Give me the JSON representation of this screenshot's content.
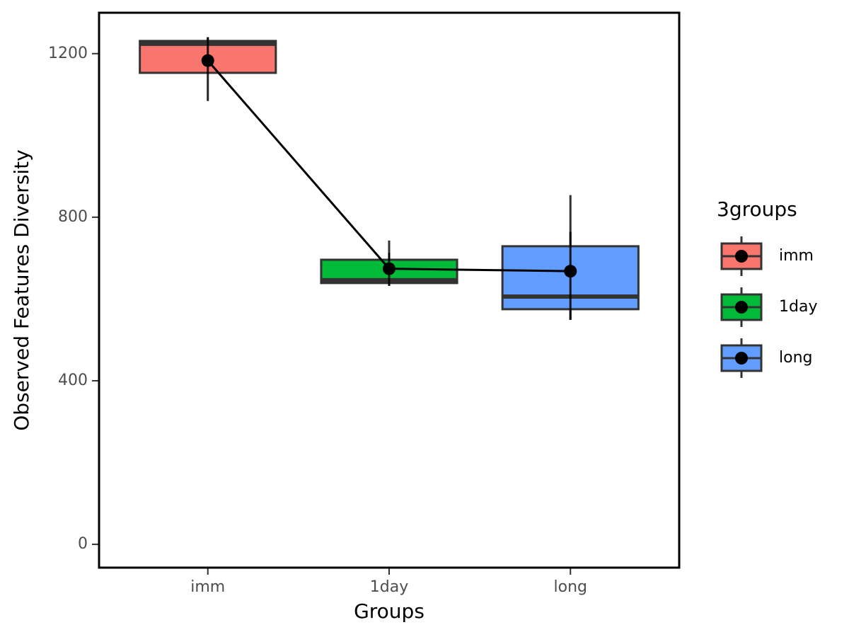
{
  "chart_data": {
    "type": "box",
    "x_label": "Groups",
    "y_label": "Observed Features Diversity",
    "categories": [
      "imm",
      "1day",
      "long"
    ],
    "colors": [
      "#F8766D",
      "#00BA38",
      "#619CFF"
    ],
    "whisker_low": [
      1153,
      632,
      549
    ],
    "q1": [
      1153,
      639,
      575
    ],
    "median": [
      1224,
      646,
      606
    ],
    "q3": [
      1231,
      696,
      729
    ],
    "whisker_high": [
      1240,
      743,
      854
    ],
    "mean": [
      1183,
      674,
      668
    ],
    "error_low": [
      1084,
      632,
      549
    ],
    "error_high": [
      1240,
      713,
      764
    ],
    "legend_title": "3groups",
    "legend_position": "right",
    "ylim": [
      -57,
      1300
    ],
    "yticks": [
      0,
      400,
      800,
      1200
    ]
  }
}
